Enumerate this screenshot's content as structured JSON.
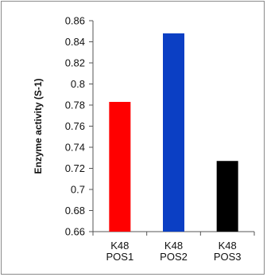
{
  "chart_data": {
    "type": "bar",
    "categories": [
      [
        "K48",
        "POS1"
      ],
      [
        "K48",
        "POS2"
      ],
      [
        "K48",
        "POS3"
      ]
    ],
    "values": [
      0.783,
      0.848,
      0.727
    ],
    "colors": [
      "#ff0000",
      "#0b3fc4",
      "#000000"
    ],
    "ylabel": "Enzyme activity (S-1)",
    "ylim": [
      0.66,
      0.86
    ],
    "yticks": [
      0.66,
      0.68,
      0.7,
      0.72,
      0.74,
      0.76,
      0.78,
      0.8,
      0.82,
      0.84,
      0.86
    ],
    "ytick_labels": [
      "0.66",
      "0.68",
      "0.7",
      "0.72",
      "0.74",
      "0.76",
      "0.78",
      "0.8",
      "0.82",
      "0.84",
      "0.86"
    ],
    "grid": false,
    "legend": "none"
  }
}
